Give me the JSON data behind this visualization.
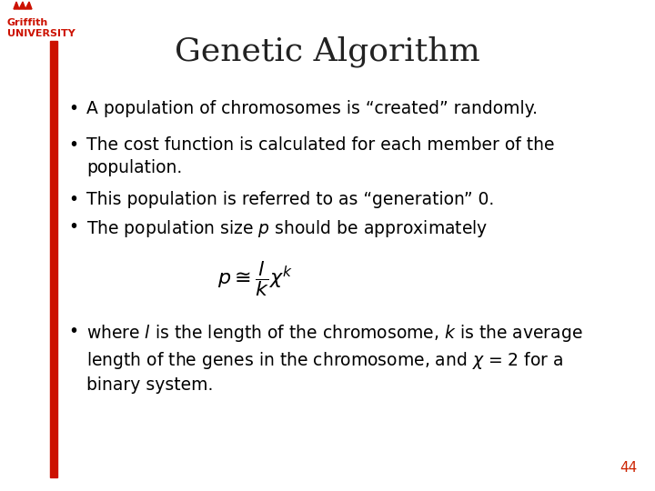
{
  "title": "Genetic Algorithm",
  "title_fontsize": 26,
  "title_color": "#222222",
  "background_color": "#ffffff",
  "accent_color": "#cc1100",
  "text_color": "#000000",
  "page_number": "44",
  "page_number_color": "#cc2200",
  "left_bar_color": "#cc1100",
  "bullet_fontsize": 13.5,
  "formula_fontsize": 16,
  "logo_text_color": "#cc1100",
  "logo_text": "Griffith\nUNIVERSITY"
}
